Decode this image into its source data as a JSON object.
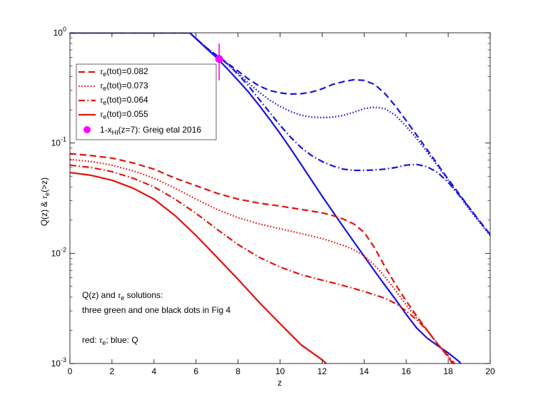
{
  "colors": {
    "red": "#e3120b",
    "blue": "#1a12e0",
    "magenta": "#ff00ff",
    "axis": "#000000"
  },
  "chart_data": {
    "type": "line",
    "xlabel": "z",
    "ylabel": "Q(z)  & τe(>z)",
    "ylabel_parts": {
      "q": "Q(z)  & ",
      "tau": "τ",
      "sub": "e",
      "rest": "(>z)"
    },
    "yscale": "log",
    "xlim": [
      0,
      20
    ],
    "ylim": [
      0.001,
      1
    ],
    "x_ticks": [
      0,
      2,
      4,
      6,
      8,
      10,
      12,
      14,
      16,
      18,
      20
    ],
    "x_tick_labels": [
      "0",
      "2",
      "4",
      "6",
      "8",
      "10",
      "12",
      "14",
      "16",
      "18",
      "20"
    ],
    "y_ticks": [
      {
        "value": 1,
        "base": "10",
        "exp": "0"
      },
      {
        "value": 0.1,
        "base": "10",
        "exp": "-1"
      },
      {
        "value": 0.01,
        "base": "10",
        "exp": "-2"
      },
      {
        "value": 0.001,
        "base": "10",
        "exp": "-3"
      }
    ],
    "legend": {
      "placement": "top-left",
      "entries": [
        {
          "pre": "τ",
          "sub": "e",
          "post": "(tot)=0.082",
          "style": "dashed",
          "color": "red"
        },
        {
          "pre": "τ",
          "sub": "e",
          "post": "(tot)=0.073",
          "style": "dotted",
          "color": "red"
        },
        {
          "pre": "τ",
          "sub": "e",
          "post": "(tot)=0.064",
          "style": "dashdot",
          "color": "red"
        },
        {
          "pre": "τ",
          "sub": "e",
          "post": "(tot)=0.055",
          "style": "solid",
          "color": "red"
        },
        {
          "pre": "1-x",
          "sub": "HI",
          "post": "(z=7): Greig etal 2016",
          "style": "marker",
          "color": "magenta"
        }
      ]
    },
    "annotations": {
      "line1_pre": "Q(z) and ",
      "line1_tau": "τ",
      "line1_sub": "e",
      "line1_post": " solutions:",
      "line2": "three green and one black dots in Fig 4",
      "line3_pre": "red: ",
      "line3_tau": "τ",
      "line3_sub": "e",
      "line3_post": "; blue: Q"
    },
    "marker_point": {
      "x": 7.1,
      "y": 0.58,
      "err_low": 0.37,
      "err_high": 0.8
    },
    "series": [
      {
        "name": "Q, τe(tot)=0.082",
        "color": "blue",
        "style": "dashed",
        "x": [
          0,
          5.7,
          6.5,
          7,
          7.5,
          8,
          8.5,
          9,
          9.5,
          10,
          10.5,
          11,
          11.5,
          12,
          12.5,
          13,
          13.5,
          14,
          14.5,
          15,
          15.5,
          16,
          16.5,
          17,
          17.5,
          18,
          18.5,
          19,
          19.5,
          20
        ],
        "y": [
          1,
          1,
          0.73,
          0.62,
          0.53,
          0.45,
          0.38,
          0.33,
          0.3,
          0.285,
          0.278,
          0.28,
          0.29,
          0.31,
          0.34,
          0.36,
          0.375,
          0.37,
          0.34,
          0.28,
          0.215,
          0.16,
          0.118,
          0.087,
          0.064,
          0.047,
          0.035,
          0.026,
          0.0195,
          0.0148
        ]
      },
      {
        "name": "Q, τe(tot)=0.073",
        "color": "blue",
        "style": "dotted",
        "x": [
          0,
          5.7,
          6.5,
          7,
          7.5,
          8,
          8.5,
          9,
          9.5,
          10,
          10.5,
          11,
          11.5,
          12,
          12.5,
          13,
          13.5,
          14,
          14.5,
          15,
          15.5,
          16,
          16.5,
          17,
          17.5,
          18,
          18.5,
          19,
          19.5,
          20
        ],
        "y": [
          1,
          1,
          0.73,
          0.62,
          0.52,
          0.43,
          0.35,
          0.29,
          0.245,
          0.215,
          0.193,
          0.179,
          0.172,
          0.17,
          0.172,
          0.178,
          0.19,
          0.205,
          0.212,
          0.205,
          0.178,
          0.142,
          0.11,
          0.083,
          0.062,
          0.046,
          0.034,
          0.025,
          0.019,
          0.0145
        ]
      },
      {
        "name": "Q, τe(tot)=0.064",
        "color": "blue",
        "style": "dashdot",
        "x": [
          0,
          5.7,
          6.5,
          7,
          7.5,
          8,
          8.5,
          9,
          9.5,
          10,
          10.5,
          11,
          11.5,
          12,
          12.5,
          13,
          13.5,
          14,
          14.5,
          15,
          15.5,
          16,
          16.5,
          17,
          17.5,
          18,
          18.5,
          19,
          19.5,
          20
        ],
        "y": [
          1,
          1,
          0.73,
          0.62,
          0.52,
          0.42,
          0.33,
          0.25,
          0.19,
          0.145,
          0.113,
          0.091,
          0.077,
          0.068,
          0.062,
          0.058,
          0.0565,
          0.0565,
          0.057,
          0.058,
          0.06,
          0.063,
          0.064,
          0.061,
          0.054,
          0.044,
          0.034,
          0.026,
          0.0195,
          0.0148
        ]
      },
      {
        "name": "Q, τe(tot)=0.055",
        "color": "blue",
        "style": "solid",
        "x": [
          0,
          5.7,
          6.5,
          7,
          7.5,
          8,
          8.5,
          9,
          9.5,
          10,
          10.5,
          11,
          11.5,
          12,
          12.5,
          13,
          13.5,
          14,
          14.5,
          15,
          15.5,
          16,
          16.5,
          17,
          17.5,
          18,
          18.5,
          18.6
        ],
        "y": [
          1,
          1,
          0.72,
          0.59,
          0.47,
          0.37,
          0.29,
          0.22,
          0.165,
          0.122,
          0.089,
          0.064,
          0.046,
          0.033,
          0.024,
          0.0175,
          0.0128,
          0.0094,
          0.0069,
          0.0051,
          0.0038,
          0.0028,
          0.0021,
          0.0017,
          0.00145,
          0.00125,
          0.00105,
          0.001
        ]
      },
      {
        "name": "τe, 0.082",
        "color": "red",
        "style": "dashed",
        "x": [
          0,
          1,
          2,
          3,
          4,
          5,
          6,
          7,
          8,
          9,
          10,
          11,
          12,
          12.5,
          13,
          13.5,
          14,
          14.5,
          15,
          15.5,
          16,
          16.5,
          17,
          17.5,
          18,
          18.2
        ],
        "y": [
          0.08,
          0.077,
          0.073,
          0.066,
          0.058,
          0.048,
          0.041,
          0.035,
          0.031,
          0.0285,
          0.0268,
          0.025,
          0.0233,
          0.022,
          0.0205,
          0.0185,
          0.0155,
          0.0112,
          0.0075,
          0.0052,
          0.0037,
          0.0027,
          0.002,
          0.0015,
          0.00115,
          0.001
        ]
      },
      {
        "name": "τe, 0.073",
        "color": "red",
        "style": "dotted",
        "x": [
          0,
          1,
          2,
          3,
          4,
          5,
          6,
          7,
          8,
          9,
          10,
          11,
          12,
          12.5,
          13,
          13.5,
          14,
          14.5,
          15,
          15.5,
          16,
          16.5,
          17,
          17.5,
          18,
          18.2
        ],
        "y": [
          0.071,
          0.068,
          0.063,
          0.056,
          0.048,
          0.039,
          0.031,
          0.025,
          0.021,
          0.0185,
          0.0167,
          0.0151,
          0.0136,
          0.0127,
          0.0118,
          0.0108,
          0.0095,
          0.0078,
          0.0061,
          0.0046,
          0.0034,
          0.0026,
          0.002,
          0.0015,
          0.00115,
          0.001
        ]
      },
      {
        "name": "τe, 0.064",
        "color": "red",
        "style": "dashdot",
        "x": [
          0,
          1,
          2,
          3,
          4,
          5,
          6,
          7,
          8,
          9,
          10,
          11,
          12,
          12.5,
          13,
          13.5,
          14,
          14.5,
          15,
          15.5,
          16,
          16.5,
          17,
          17.5,
          18,
          18.3
        ],
        "y": [
          0.063,
          0.06,
          0.055,
          0.048,
          0.04,
          0.031,
          0.023,
          0.0165,
          0.012,
          0.0092,
          0.0075,
          0.0064,
          0.0057,
          0.0054,
          0.0051,
          0.0048,
          0.0045,
          0.0042,
          0.0039,
          0.0035,
          0.003,
          0.0025,
          0.002,
          0.0015,
          0.00118,
          0.001
        ]
      },
      {
        "name": "τe, 0.055",
        "color": "red",
        "style": "solid",
        "x": [
          0,
          1,
          2,
          3,
          4,
          5,
          6,
          7,
          8,
          9,
          10,
          11,
          12,
          12.2
        ],
        "y": [
          0.054,
          0.051,
          0.046,
          0.039,
          0.031,
          0.022,
          0.0145,
          0.0092,
          0.0058,
          0.0036,
          0.0023,
          0.00148,
          0.00108,
          0.001
        ]
      }
    ]
  }
}
